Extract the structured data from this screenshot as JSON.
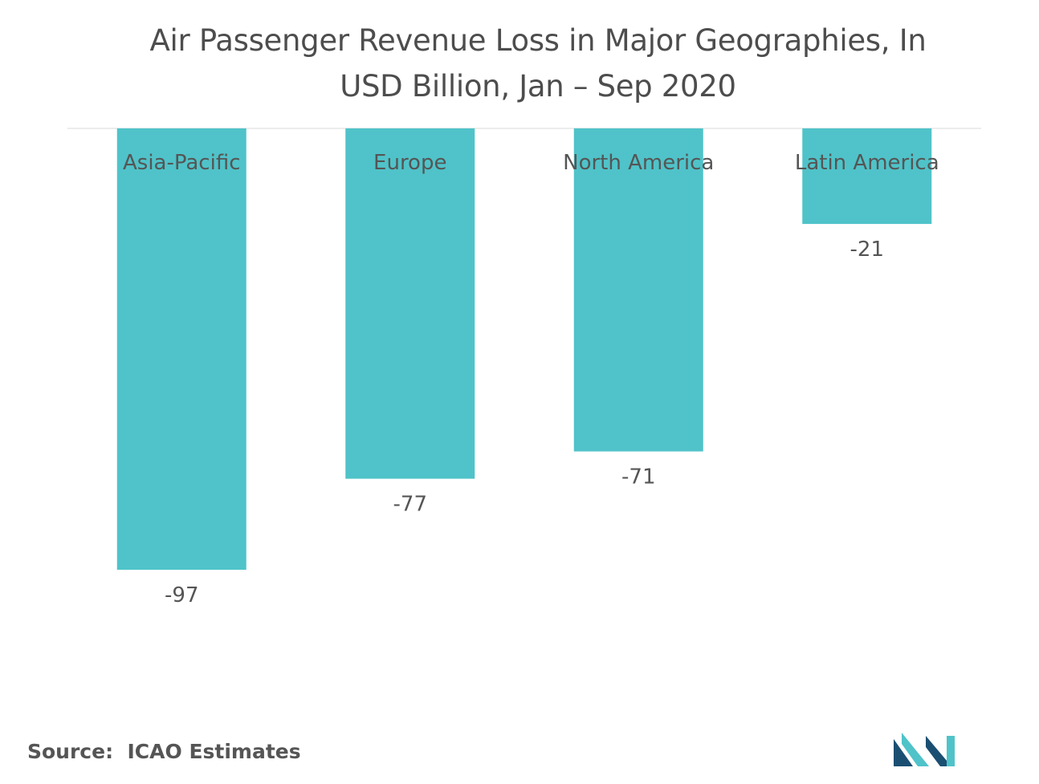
{
  "chart_data": {
    "type": "bar",
    "title": "Air Passenger Revenue Loss in Major Geographies, In USD Billion, Jan – Sep 2020",
    "categories": [
      "Asia-Pacific",
      "Europe",
      "North America",
      "Latin America"
    ],
    "values": [
      -97,
      -77,
      -71,
      -21
    ],
    "value_labels": [
      "-97",
      "-77",
      "-71",
      "-21"
    ],
    "xlabel": "",
    "ylabel": "",
    "ylim": [
      -97,
      0
    ],
    "grid": false,
    "bar_color": "#4fc3c9",
    "baseline_color": "#d9d9d9"
  },
  "source": {
    "text": "Source:  ICAO Estimates"
  },
  "logo": {
    "icon": "mordor-intelligence-logo",
    "color_dark": "#1b4f72",
    "color_light": "#4fc3c9"
  }
}
